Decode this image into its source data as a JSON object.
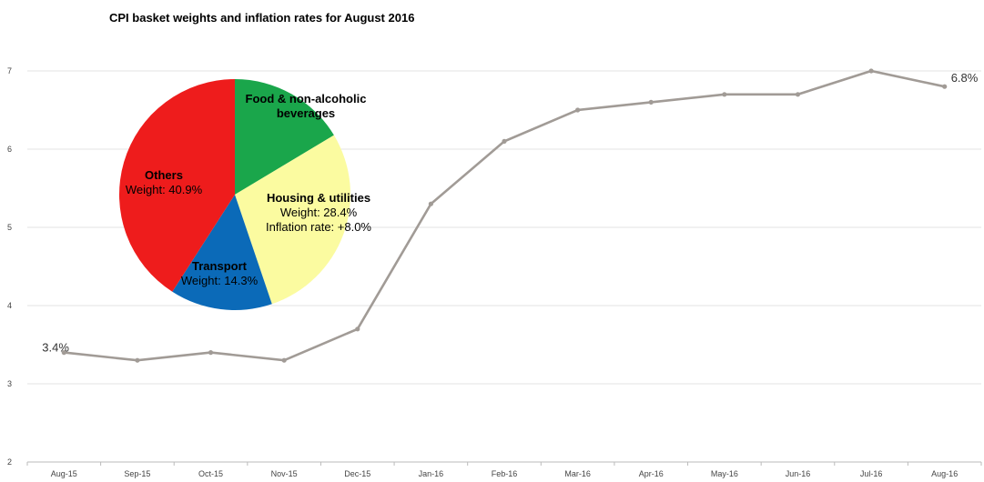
{
  "chart_data": [
    {
      "type": "line",
      "title": "CPI basket weights and inflation rates for August 2016",
      "categories": [
        "Aug-15",
        "Sep-15",
        "Oct-15",
        "Nov-15",
        "Dec-15",
        "Jan-16",
        "Feb-16",
        "Mar-16",
        "Apr-16",
        "May-16",
        "Jun-16",
        "Jul-16",
        "Aug-16"
      ],
      "series": [
        {
          "values": [
            3.4,
            3.3,
            3.4,
            3.3,
            3.7,
            5.3,
            6.1,
            6.5,
            6.6,
            6.7,
            6.7,
            7.0,
            6.8
          ]
        }
      ],
      "ylim": [
        2,
        7
      ],
      "yticks": [
        "2",
        "3",
        "4",
        "5",
        "6",
        "7"
      ],
      "grid": true,
      "data_labels": {
        "first": "3.4%",
        "last": "6.8%"
      },
      "line_color": "#a19b96"
    },
    {
      "type": "pie",
      "slices": [
        {
          "name": "Food & non-alcoholic beverages",
          "lines": [
            "Food & non-alcoholic",
            "beverages"
          ],
          "value": 16.4,
          "color": "#1aa64b"
        },
        {
          "name": "Housing & utilities",
          "lines": [
            "Housing & utilities",
            "Weight: 28.4%",
            "Inflation rate: +8.0%"
          ],
          "value": 28.4,
          "color": "#fbfba0"
        },
        {
          "name": "Transport",
          "lines": [
            "Transport",
            "Weight: 14.3%"
          ],
          "value": 14.3,
          "color": "#0b6ab8"
        },
        {
          "name": "Others",
          "lines": [
            "Others",
            "Weight: 40.9%"
          ],
          "value": 40.9,
          "color": "#ee1c1c"
        }
      ]
    }
  ]
}
